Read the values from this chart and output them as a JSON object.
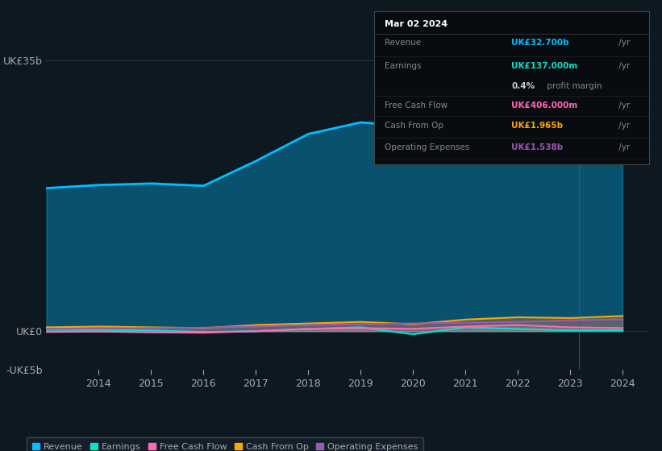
{
  "background_color": "#0d1821",
  "plot_bg_color": "#0d1821",
  "title": "earnings-and-revenue-history",
  "years": [
    2013,
    2014,
    2015,
    2016,
    2017,
    2018,
    2019,
    2020,
    2021,
    2022,
    2023,
    2024
  ],
  "revenue": [
    18.5,
    18.9,
    19.1,
    18.8,
    22.0,
    25.5,
    27.0,
    26.5,
    27.8,
    29.5,
    31.0,
    32.7
  ],
  "earnings": [
    0.2,
    0.15,
    0.1,
    -0.1,
    0.0,
    0.3,
    0.5,
    -0.4,
    0.5,
    0.3,
    0.1,
    0.137
  ],
  "free_cash_flow": [
    -0.1,
    -0.05,
    -0.15,
    -0.2,
    0.0,
    0.3,
    0.4,
    0.3,
    0.6,
    0.8,
    0.5,
    0.406
  ],
  "cash_from_op": [
    0.5,
    0.6,
    0.5,
    0.4,
    0.8,
    1.0,
    1.2,
    0.9,
    1.5,
    1.8,
    1.7,
    1.965
  ],
  "operating_expenses": [
    0.3,
    0.35,
    0.4,
    0.45,
    0.6,
    0.8,
    0.9,
    1.0,
    1.1,
    1.2,
    1.4,
    1.538
  ],
  "revenue_color": "#00bfff",
  "earnings_color": "#00e5cc",
  "free_cash_flow_color": "#ff69b4",
  "cash_from_op_color": "#ffa500",
  "operating_expenses_color": "#9b59b6",
  "ylim": [
    -5,
    37
  ],
  "yticks": [
    -5,
    0,
    35
  ],
  "ytick_labels": [
    "-UK£5b",
    "UK£0",
    "UK£35b"
  ],
  "xlabel_years": [
    "2014",
    "2015",
    "2016",
    "2017",
    "2018",
    "2019",
    "2020",
    "2021",
    "2022",
    "2023",
    "2024"
  ],
  "info_box": {
    "date": "Mar 02 2024",
    "revenue_label": "Revenue",
    "revenue_value": "UK£32.700b",
    "revenue_unit": " /yr",
    "earnings_label": "Earnings",
    "earnings_value": "UK£137.000m",
    "earnings_unit": " /yr",
    "profit_margin_bold": "0.4%",
    "profit_margin_rest": " profit margin",
    "fcf_label": "Free Cash Flow",
    "fcf_value": "UK£406.000m",
    "fcf_unit": " /yr",
    "cfop_label": "Cash From Op",
    "cfop_value": "UK£1.965b",
    "cfop_unit": " /yr",
    "opex_label": "Operating Expenses",
    "opex_value": "UK£1.538b",
    "opex_unit": " /yr"
  },
  "legend_items": [
    {
      "label": "Revenue",
      "color": "#00bfff"
    },
    {
      "label": "Earnings",
      "color": "#00e5cc"
    },
    {
      "label": "Free Cash Flow",
      "color": "#ff69b4"
    },
    {
      "label": "Cash From Op",
      "color": "#ffa500"
    },
    {
      "label": "Operating Expenses",
      "color": "#9b59b6"
    }
  ],
  "vline_x": 2023.17,
  "fill_alpha": 0.35,
  "grid_color": "#2a3a4a",
  "text_color": "#aaaaaa",
  "info_box_bg": "#080c10",
  "info_box_border": "#444444"
}
